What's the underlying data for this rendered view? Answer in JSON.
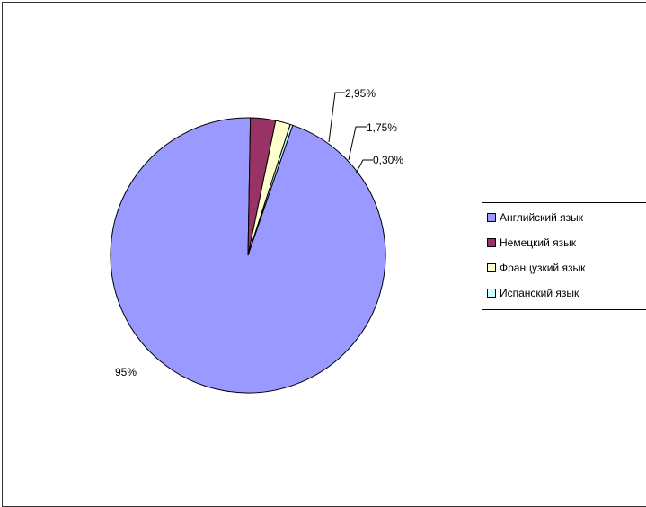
{
  "chart_data": {
    "type": "pie",
    "title": "",
    "slices": [
      {
        "label": "Английский язык",
        "value": 95,
        "display": "95%",
        "color": "#9999ff"
      },
      {
        "label": "Немецкий язык",
        "value": 2.95,
        "display": "2,95%",
        "color": "#993366"
      },
      {
        "label": "Французкий язык",
        "value": 1.75,
        "display": "1,75%",
        "color": "#ffffcc"
      },
      {
        "label": "Испанский язык",
        "value": 0.3,
        "display": "0,30%",
        "color": "#ccffff"
      }
    ],
    "legend": "right",
    "data_labels": "outside"
  },
  "legend": {
    "items": [
      "Английский язык",
      "Немецкий язык",
      "Французкий язык",
      "Испанский язык"
    ]
  }
}
